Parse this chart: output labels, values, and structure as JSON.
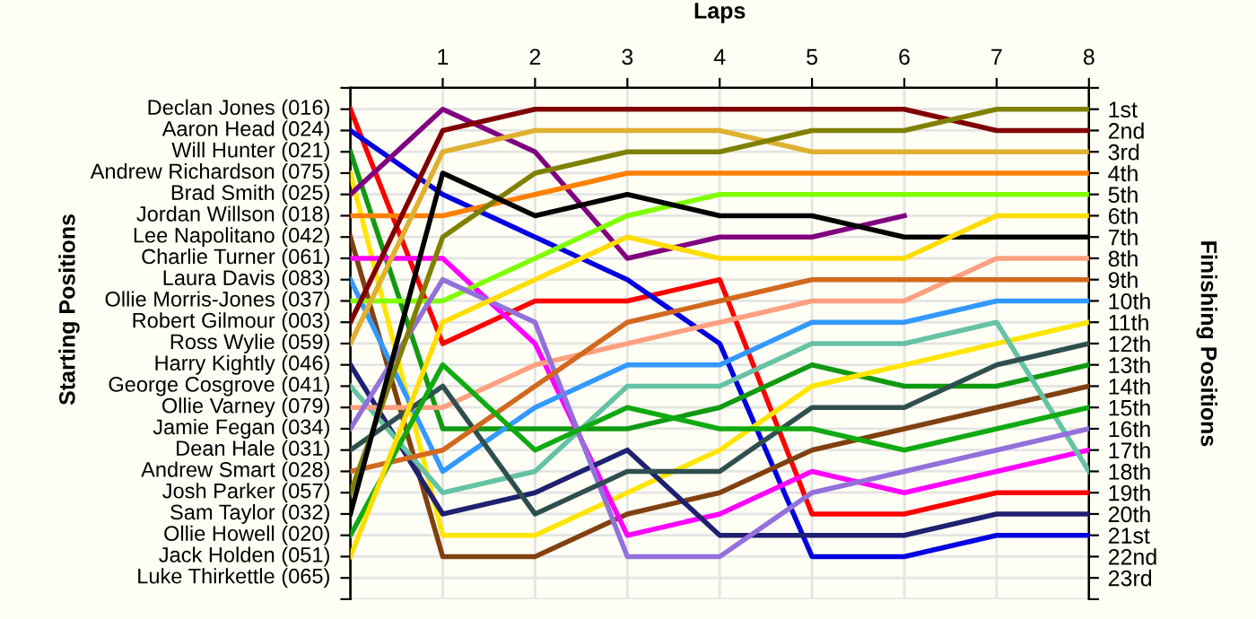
{
  "chart_data": {
    "type": "line",
    "xlabel": "Laps",
    "y2label": "Finishing Positions",
    "x": [
      0,
      1,
      2,
      3,
      4,
      5,
      6,
      7,
      8
    ],
    "xlim": [
      0,
      8
    ],
    "xticks": [
      1,
      2,
      3,
      4,
      5,
      6,
      7,
      8
    ],
    "y2lim": [
      24,
      0
    ],
    "y2ticks": [
      {
        "value": 0,
        "label": null
      },
      {
        "value": 1,
        "label": "1st"
      },
      {
        "value": 2,
        "label": "2nd"
      },
      {
        "value": 3,
        "label": "3rd"
      },
      {
        "value": 4,
        "label": "4th"
      },
      {
        "value": 5,
        "label": "5th"
      },
      {
        "value": 6,
        "label": "6th"
      },
      {
        "value": 7,
        "label": "7th"
      },
      {
        "value": 8,
        "label": "8th"
      },
      {
        "value": 9,
        "label": "9th"
      },
      {
        "value": 10,
        "label": "10th"
      },
      {
        "value": 11,
        "label": "11th"
      },
      {
        "value": 12,
        "label": "12th"
      },
      {
        "value": 13,
        "label": "13th"
      },
      {
        "value": 14,
        "label": "14th"
      },
      {
        "value": 15,
        "label": "15th"
      },
      {
        "value": 16,
        "label": "16th"
      },
      {
        "value": 17,
        "label": "17th"
      },
      {
        "value": 18,
        "label": "18th"
      },
      {
        "value": 19,
        "label": "19th"
      },
      {
        "value": 20,
        "label": "20th"
      },
      {
        "value": 21,
        "label": "21st"
      },
      {
        "value": 22,
        "label": "22nd"
      },
      {
        "value": 23,
        "label": "23rd"
      },
      {
        "value": 24,
        "label": null
      }
    ],
    "grid": true,
    "legend": false,
    "marker": "none",
    "line_style": "solid",
    "annotations": [
      "Starting Positions",
      "Declan Jones (016)",
      "Aaron Head (024)",
      "Will Hunter (021)",
      "Andrew Richardson (075)",
      "Brad Smith (025)",
      "Jordan Willson (018)",
      "Lee Napolitano (042)",
      "Charlie Turner (061)",
      "Laura Davis (083)",
      "Ollie Morris-Jones (037)",
      "Robert Gilmour (003)",
      "Ross Wylie (059)",
      "Harry Kightly (046)",
      "George Cosgrove (041)",
      "Ollie Varney (079)",
      "Jamie Fegan (034)",
      "Dean Hale (031)",
      "Andrew Smart (028)",
      "Josh Parker (057)",
      "Sam Taylor (032)",
      "Ollie Howell (020)",
      "Jack Holden (051)",
      "Luke Thirkettle (065)"
    ],
    "series": [
      {
        "axis": "y2",
        "color": "#ff0000",
        "values": [
          1,
          12,
          10,
          10,
          9,
          20,
          20,
          19,
          19
        ]
      },
      {
        "axis": "y2",
        "color": "#0000e0",
        "values": [
          2,
          5,
          7,
          9,
          12,
          22,
          22,
          21,
          21
        ]
      },
      {
        "axis": "y2",
        "color": "#119911",
        "values": [
          3,
          16,
          16,
          16,
          15,
          13,
          14,
          14,
          13
        ]
      },
      {
        "axis": "y2",
        "color": "#ffe600",
        "values": [
          4,
          21,
          21,
          19,
          17,
          14,
          13,
          12,
          11
        ]
      },
      {
        "axis": "y2",
        "color": "#800080",
        "values": [
          5,
          1,
          3,
          8,
          7,
          7,
          6,
          null,
          null
        ]
      },
      {
        "axis": "y2",
        "color": "#ff8000",
        "values": [
          6,
          6,
          5,
          4,
          4,
          4,
          4,
          4,
          4
        ]
      },
      {
        "axis": "y2",
        "color": "#804010",
        "values": [
          7,
          22,
          22,
          20,
          19,
          17,
          16,
          15,
          14
        ]
      },
      {
        "axis": "y2",
        "color": "#ff00ff",
        "values": [
          8,
          8,
          12,
          21,
          20,
          18,
          19,
          18,
          17
        ]
      },
      {
        "axis": "y2",
        "color": "#3399ff",
        "values": [
          9,
          18,
          15,
          13,
          13,
          11,
          11,
          10,
          10
        ]
      },
      {
        "axis": "y2",
        "color": "#80ff00",
        "values": [
          10,
          10,
          8,
          6,
          5,
          5,
          5,
          5,
          5
        ]
      },
      {
        "axis": "y2",
        "color": "#800000",
        "values": [
          11,
          2,
          1,
          1,
          1,
          1,
          1,
          2,
          2
        ]
      },
      {
        "axis": "y2",
        "color": "#e0b030",
        "values": [
          12,
          3,
          2,
          2,
          2,
          3,
          3,
          3,
          3
        ]
      },
      {
        "axis": "y2",
        "color": "#202070",
        "values": [
          13,
          20,
          19,
          17,
          21,
          21,
          21,
          20,
          20
        ]
      },
      {
        "axis": "y2",
        "color": "#66c2a5",
        "values": [
          14,
          19,
          18,
          14,
          14,
          12,
          12,
          11,
          18
        ]
      },
      {
        "axis": "y2",
        "color": "#ffa080",
        "values": [
          15,
          15,
          13,
          12,
          11,
          10,
          10,
          8,
          8
        ]
      },
      {
        "axis": "y2",
        "color": "#9370db",
        "values": [
          16,
          9,
          11,
          22,
          22,
          19,
          18,
          17,
          16
        ]
      },
      {
        "axis": "y2",
        "color": "#2f4f4f",
        "values": [
          17,
          14,
          20,
          18,
          18,
          15,
          15,
          13,
          12
        ]
      },
      {
        "axis": "y2",
        "color": "#d2691e",
        "values": [
          18,
          17,
          14,
          11,
          10,
          9,
          9,
          9,
          9
        ]
      },
      {
        "axis": "y2",
        "color": "#808000",
        "values": [
          19,
          7,
          4,
          3,
          3,
          2,
          2,
          1,
          1
        ]
      },
      {
        "axis": "y2",
        "color": "#000000",
        "values": [
          20,
          4,
          6,
          5,
          6,
          6,
          7,
          7,
          7
        ]
      },
      {
        "axis": "y2",
        "color": "#11aa11",
        "values": [
          21,
          13,
          17,
          15,
          16,
          16,
          17,
          16,
          15
        ]
      },
      {
        "axis": "y2",
        "color": "#ffdd00",
        "values": [
          22,
          11,
          9,
          7,
          8,
          8,
          8,
          6,
          6
        ]
      }
    ]
  }
}
